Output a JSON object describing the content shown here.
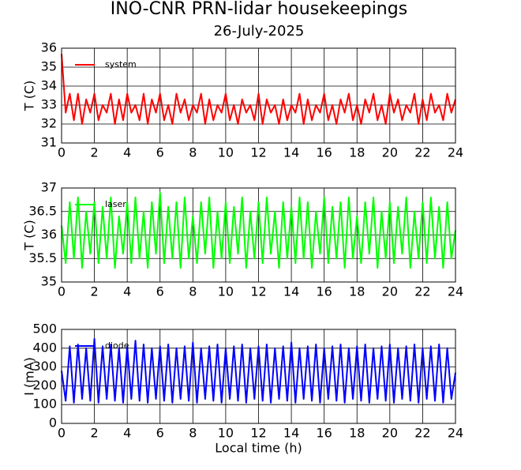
{
  "title": "INO-CNR PRN-lidar housekeepings",
  "subtitle": "26-July-2025",
  "chart_data": [
    {
      "type": "line",
      "ylabel": "T (C)",
      "xlim": [
        0,
        24
      ],
      "xticks": [
        0,
        2,
        4,
        6,
        8,
        10,
        12,
        14,
        16,
        18,
        20,
        22,
        24
      ],
      "ylim": [
        31,
        36
      ],
      "yticks": [
        31,
        32,
        33,
        34,
        35,
        36
      ],
      "grid": true,
      "legend": "upper left",
      "x": [
        0,
        0.25,
        0.5,
        0.75,
        1,
        1.25,
        1.5,
        1.75,
        2,
        2.25,
        2.5,
        2.75,
        3,
        3.25,
        3.5,
        3.75,
        4,
        4.25,
        4.5,
        4.75,
        5,
        5.25,
        5.5,
        5.75,
        6,
        6.25,
        6.5,
        6.75,
        7,
        7.25,
        7.5,
        7.75,
        8,
        8.25,
        8.5,
        8.75,
        9,
        9.25,
        9.5,
        9.75,
        10,
        10.25,
        10.5,
        10.75,
        11,
        11.25,
        11.5,
        11.75,
        12,
        12.25,
        12.5,
        12.75,
        13,
        13.25,
        13.5,
        13.75,
        14,
        14.25,
        14.5,
        14.75,
        15,
        15.25,
        15.5,
        15.75,
        16,
        16.25,
        16.5,
        16.75,
        17,
        17.25,
        17.5,
        17.75,
        18,
        18.25,
        18.5,
        18.75,
        19,
        19.25,
        19.5,
        19.75,
        20,
        20.25,
        20.5,
        20.75,
        21,
        21.25,
        21.5,
        21.75,
        22,
        22.25,
        22.5,
        22.75,
        23,
        23.25,
        23.5,
        23.75,
        24
      ],
      "series": [
        {
          "name": "system",
          "color": "#ff0000",
          "values": [
            35.7,
            32.6,
            33.6,
            32.2,
            33.6,
            32,
            33.3,
            32.6,
            33.6,
            32.2,
            33,
            32.6,
            33.6,
            32,
            33.3,
            32.2,
            33.6,
            32.6,
            33,
            32.2,
            33.6,
            32,
            33.3,
            32.6,
            33.6,
            32.2,
            33,
            32,
            33.6,
            32.6,
            33.3,
            32.2,
            33,
            32.6,
            33.6,
            32,
            33.3,
            32.2,
            33,
            32.6,
            33.6,
            32.2,
            33,
            32,
            33.3,
            32.6,
            33,
            32.2,
            33.6,
            32,
            33.3,
            32.6,
            33,
            32,
            33.3,
            32.2,
            33,
            32.6,
            33.6,
            32,
            33.3,
            32.2,
            33,
            32.6,
            33.6,
            32.2,
            33,
            32,
            33.3,
            32.6,
            33.6,
            32.2,
            33,
            32,
            33.3,
            32.6,
            33.6,
            32.2,
            33,
            32,
            33.6,
            32.6,
            33.3,
            32.2,
            33,
            32.6,
            33.6,
            32,
            33.3,
            32.2,
            33.6,
            32.6,
            33,
            32.2,
            33.6,
            32.6,
            33.3
          ]
        }
      ]
    },
    {
      "type": "line",
      "ylabel": "T (C)",
      "xlim": [
        0,
        24
      ],
      "xticks": [
        0,
        2,
        4,
        6,
        8,
        10,
        12,
        14,
        16,
        18,
        20,
        22,
        24
      ],
      "ylim": [
        35,
        37
      ],
      "yticks": [
        35,
        35.5,
        36,
        36.5,
        37
      ],
      "grid": true,
      "legend": "upper left",
      "x": [
        0,
        0.25,
        0.5,
        0.75,
        1,
        1.25,
        1.5,
        1.75,
        2,
        2.25,
        2.5,
        2.75,
        3,
        3.25,
        3.5,
        3.75,
        4,
        4.25,
        4.5,
        4.75,
        5,
        5.25,
        5.5,
        5.75,
        6,
        6.25,
        6.5,
        6.75,
        7,
        7.25,
        7.5,
        7.75,
        8,
        8.25,
        8.5,
        8.75,
        9,
        9.25,
        9.5,
        9.75,
        10,
        10.25,
        10.5,
        10.75,
        11,
        11.25,
        11.5,
        11.75,
        12,
        12.25,
        12.5,
        12.75,
        13,
        13.25,
        13.5,
        13.75,
        14,
        14.25,
        14.5,
        14.75,
        15,
        15.25,
        15.5,
        15.75,
        16,
        16.25,
        16.5,
        16.75,
        17,
        17.25,
        17.5,
        17.75,
        18,
        18.25,
        18.5,
        18.75,
        19,
        19.25,
        19.5,
        19.75,
        20,
        20.25,
        20.5,
        20.75,
        21,
        21.25,
        21.5,
        21.75,
        22,
        22.25,
        22.5,
        22.75,
        23,
        23.25,
        23.5,
        23.75,
        24
      ],
      "series": [
        {
          "name": "laser",
          "color": "#00ff00",
          "values": [
            36.2,
            35.4,
            36.7,
            35.5,
            36.8,
            35.3,
            36.5,
            35.6,
            36.7,
            35.4,
            36.6,
            35.5,
            36.8,
            35.3,
            36.4,
            35.6,
            36.7,
            35.4,
            36.8,
            35.5,
            36.5,
            35.3,
            36.7,
            35.6,
            36.9,
            35.4,
            36.6,
            35.5,
            36.7,
            35.3,
            36.8,
            35.5,
            36.4,
            35.4,
            36.7,
            35.6,
            36.8,
            35.3,
            36.5,
            35.5,
            36.7,
            35.4,
            36.6,
            35.6,
            36.8,
            35.3,
            36.5,
            35.5,
            36.7,
            35.4,
            36.8,
            35.6,
            36.5,
            35.3,
            36.7,
            35.5,
            36.6,
            35.4,
            36.8,
            35.5,
            36.7,
            35.3,
            36.5,
            35.6,
            36.8,
            35.4,
            36.6,
            35.5,
            36.7,
            35.3,
            36.8,
            35.5,
            36.4,
            35.4,
            36.7,
            35.6,
            36.8,
            35.3,
            36.5,
            35.5,
            36.7,
            35.4,
            36.6,
            35.6,
            36.8,
            35.3,
            36.5,
            35.5,
            36.7,
            35.4,
            36.8,
            35.5,
            36.6,
            35.3,
            36.7,
            35.5,
            36.1
          ]
        }
      ]
    },
    {
      "type": "line",
      "ylabel": "I (mA)",
      "xlabel": "Local time (h)",
      "xlim": [
        0,
        24
      ],
      "xticks": [
        0,
        2,
        4,
        6,
        8,
        10,
        12,
        14,
        16,
        18,
        20,
        22,
        24
      ],
      "ylim": [
        0,
        500
      ],
      "yticks": [
        0,
        100,
        200,
        300,
        400,
        500
      ],
      "grid": true,
      "legend": "upper left",
      "x": [
        0,
        0.25,
        0.5,
        0.75,
        1,
        1.25,
        1.5,
        1.75,
        2,
        2.25,
        2.5,
        2.75,
        3,
        3.25,
        3.5,
        3.75,
        4,
        4.25,
        4.5,
        4.75,
        5,
        5.25,
        5.5,
        5.75,
        6,
        6.25,
        6.5,
        6.75,
        7,
        7.25,
        7.5,
        7.75,
        8,
        8.25,
        8.5,
        8.75,
        9,
        9.25,
        9.5,
        9.75,
        10,
        10.25,
        10.5,
        10.75,
        11,
        11.25,
        11.5,
        11.75,
        12,
        12.25,
        12.5,
        12.75,
        13,
        13.25,
        13.5,
        13.75,
        14,
        14.25,
        14.5,
        14.75,
        15,
        15.25,
        15.5,
        15.75,
        16,
        16.25,
        16.5,
        16.75,
        17,
        17.25,
        17.5,
        17.75,
        18,
        18.25,
        18.5,
        18.75,
        19,
        19.25,
        19.5,
        19.75,
        20,
        20.25,
        20.5,
        20.75,
        21,
        21.25,
        21.5,
        21.75,
        22,
        22.25,
        22.5,
        22.75,
        23,
        23.25,
        23.5,
        23.75,
        24
      ],
      "series": [
        {
          "name": "diode",
          "color": "#0000ff",
          "values": [
            280,
            120,
            410,
            110,
            420,
            130,
            400,
            120,
            450,
            110,
            410,
            130,
            420,
            120,
            400,
            110,
            410,
            130,
            440,
            120,
            420,
            110,
            400,
            130,
            410,
            120,
            420,
            110,
            400,
            130,
            410,
            120,
            430,
            110,
            400,
            130,
            410,
            120,
            420,
            110,
            400,
            130,
            410,
            120,
            420,
            110,
            400,
            130,
            410,
            120,
            420,
            110,
            400,
            130,
            410,
            120,
            430,
            110,
            400,
            130,
            410,
            120,
            420,
            110,
            400,
            130,
            410,
            120,
            420,
            110,
            400,
            130,
            410,
            120,
            420,
            110,
            400,
            130,
            410,
            120,
            420,
            110,
            400,
            130,
            410,
            120,
            420,
            110,
            400,
            130,
            410,
            120,
            420,
            110,
            400,
            130,
            270
          ]
        }
      ]
    }
  ]
}
